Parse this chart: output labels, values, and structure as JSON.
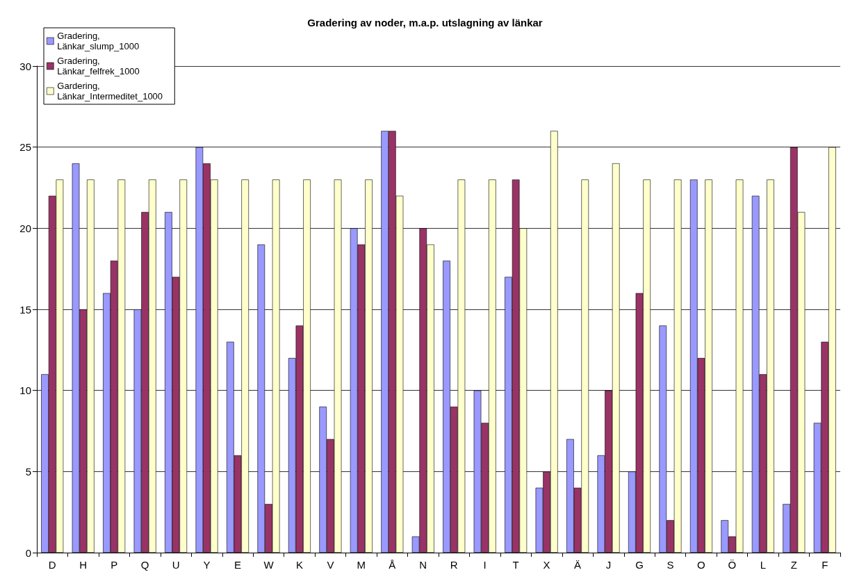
{
  "chart_data": {
    "type": "bar",
    "title": "Gradering av noder, m.a.p. utslagning av länkar",
    "categories": [
      "D",
      "H",
      "P",
      "Q",
      "U",
      "Y",
      "E",
      "W",
      "K",
      "V",
      "M",
      "Å",
      "N",
      "R",
      "I",
      "T",
      "X",
      "Ä",
      "J",
      "G",
      "S",
      "O",
      "Ö",
      "L",
      "Z",
      "F"
    ],
    "series": [
      {
        "name": "Gradering, Länkar_slump_1000",
        "color": "#9999ff",
        "values": [
          11,
          24,
          16,
          15,
          21,
          25,
          13,
          19,
          12,
          9,
          20,
          26,
          1,
          18,
          10,
          17,
          4,
          7,
          6,
          5,
          14,
          23,
          2,
          22,
          3,
          8
        ]
      },
      {
        "name": "Gradering, Länkar_felfrek_1000",
        "color": "#993366",
        "values": [
          22,
          15,
          18,
          21,
          17,
          24,
          6,
          3,
          14,
          7,
          19,
          26,
          20,
          9,
          8,
          23,
          5,
          4,
          10,
          16,
          2,
          12,
          1,
          11,
          25,
          13
        ]
      },
      {
        "name": "Gardering, Länkar_Intermeditet_1000",
        "color": "#ffffcc",
        "values": [
          23,
          23,
          23,
          23,
          23,
          23,
          23,
          23,
          23,
          23,
          23,
          22,
          19,
          23,
          23,
          20,
          26,
          23,
          24,
          23,
          23,
          23,
          23,
          23,
          21,
          25
        ]
      }
    ],
    "ylim": [
      0,
      30
    ],
    "yticks": [
      0,
      5,
      10,
      15,
      20,
      25,
      30
    ],
    "grid": "y",
    "legend": "top left"
  }
}
